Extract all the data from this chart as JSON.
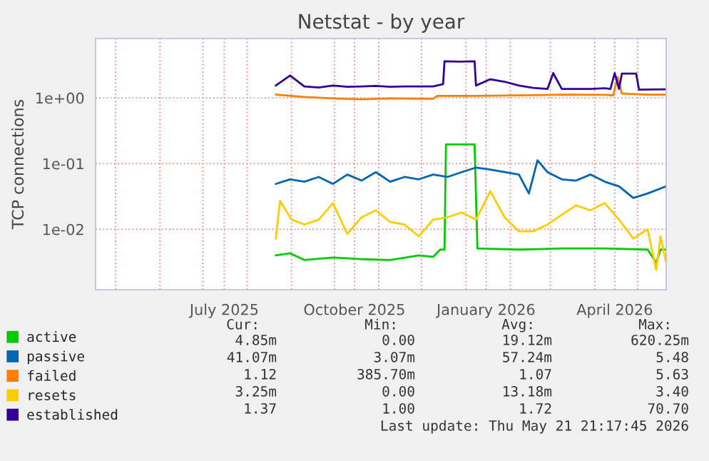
{
  "chart_data": {
    "type": "line",
    "title": "Netstat - by year",
    "ylabel": "TCP connections",
    "log": "y",
    "ylim": [
      0.0012,
      8
    ],
    "yticks": [
      {
        "value": 0.01,
        "label": "1e-02"
      },
      {
        "value": 0.1,
        "label": "1e-01"
      },
      {
        "value": 1,
        "label": "1e+00"
      }
    ],
    "xlim": [
      "2025-04-17",
      "2026-05-21"
    ],
    "xticks": [
      {
        "value": "2025-05-01",
        "label": null
      },
      {
        "value": "2025-06-01",
        "label": null
      },
      {
        "value": "2025-07-01",
        "label": null
      },
      {
        "value": "2025-07-16",
        "label": "July 2025"
      },
      {
        "value": "2025-08-01",
        "label": null
      },
      {
        "value": "2025-09-01",
        "label": null
      },
      {
        "value": "2025-10-01",
        "label": null
      },
      {
        "value": "2025-10-15",
        "label": "October 2025"
      },
      {
        "value": "2025-11-01",
        "label": null
      },
      {
        "value": "2025-12-01",
        "label": null
      },
      {
        "value": "2026-01-01",
        "label": null
      },
      {
        "value": "2026-01-15",
        "label": "January 2026"
      },
      {
        "value": "2026-02-01",
        "label": null
      },
      {
        "value": "2026-03-01",
        "label": null
      },
      {
        "value": "2026-04-01",
        "label": null
      },
      {
        "value": "2026-04-15",
        "label": "April 2026"
      },
      {
        "value": "2026-05-01",
        "label": null
      }
    ],
    "grid": true,
    "legend": "bottom left",
    "line_style": "solid",
    "marker": "none",
    "series": [
      {
        "name": "active",
        "color": "#00cc00",
        "x": [
          "2025-08-21",
          "2025-08-31",
          "2025-09-10",
          "2025-09-30",
          "2025-10-20",
          "2025-11-09",
          "2025-11-29",
          "2025-12-09",
          "2025-12-14",
          "2025-12-17",
          "2025-12-18",
          "2026-01-07",
          "2026-01-09",
          "2026-02-07",
          "2026-03-09",
          "2026-04-08",
          "2026-05-08",
          "2026-05-14",
          "2026-05-17",
          "2026-05-21"
        ],
        "values": [
          0.004,
          0.0043,
          0.0034,
          0.0037,
          0.0035,
          0.0034,
          0.004,
          0.0038,
          0.0049,
          0.0049,
          0.195,
          0.195,
          0.0051,
          0.0049,
          0.0051,
          0.0051,
          0.0049,
          0.0031,
          0.0049,
          0.0049
        ]
      },
      {
        "name": "passive",
        "color": "#0066b3",
        "x": [
          "2025-08-21",
          "2025-08-31",
          "2025-09-10",
          "2025-09-20",
          "2025-09-30",
          "2025-10-10",
          "2025-10-20",
          "2025-10-30",
          "2025-11-09",
          "2025-11-19",
          "2025-11-29",
          "2025-12-09",
          "2025-12-19",
          "2025-12-29",
          "2026-01-08",
          "2026-01-18",
          "2026-01-28",
          "2026-02-07",
          "2026-02-14",
          "2026-02-20",
          "2026-02-27",
          "2026-03-09",
          "2026-03-19",
          "2026-03-29",
          "2026-04-08",
          "2026-04-18",
          "2026-04-28",
          "2026-05-08",
          "2026-05-21"
        ],
        "values": [
          0.049,
          0.0575,
          0.053,
          0.0625,
          0.049,
          0.068,
          0.055,
          0.074,
          0.053,
          0.0625,
          0.0575,
          0.068,
          0.0625,
          0.074,
          0.087,
          0.081,
          0.074,
          0.068,
          0.035,
          0.112,
          0.074,
          0.0575,
          0.055,
          0.068,
          0.053,
          0.045,
          0.03,
          0.035,
          0.045
        ]
      },
      {
        "name": "failed",
        "color": "#ff8000",
        "x": [
          "2025-08-21",
          "2025-09-10",
          "2025-09-30",
          "2025-10-20",
          "2025-11-09",
          "2025-11-29",
          "2025-12-09",
          "2025-12-12",
          "2026-01-08",
          "2026-02-07",
          "2026-03-09",
          "2026-04-08",
          "2026-04-14",
          "2026-04-17",
          "2026-04-20",
          "2026-05-08",
          "2026-05-21"
        ],
        "values": [
          1.12,
          1.03,
          0.98,
          0.95,
          0.98,
          0.97,
          0.97,
          1.07,
          1.07,
          1.09,
          1.12,
          1.11,
          1.09,
          2.08,
          1.16,
          1.12,
          1.12
        ]
      },
      {
        "name": "resets",
        "color": "#ffcc00",
        "x": [
          "2025-08-21",
          "2025-08-24",
          "2025-09-01",
          "2025-09-10",
          "2025-09-20",
          "2025-09-30",
          "2025-10-10",
          "2025-10-20",
          "2025-10-30",
          "2025-11-09",
          "2025-11-19",
          "2025-11-29",
          "2025-12-09",
          "2025-12-19",
          "2025-12-29",
          "2026-01-08",
          "2026-01-18",
          "2026-01-28",
          "2026-02-07",
          "2026-02-17",
          "2026-02-27",
          "2026-03-09",
          "2026-03-19",
          "2026-03-29",
          "2026-04-08",
          "2026-04-18",
          "2026-04-28",
          "2026-05-08",
          "2026-05-14",
          "2026-05-17",
          "2026-05-21"
        ],
        "values": [
          0.0072,
          0.027,
          0.014,
          0.0118,
          0.014,
          0.025,
          0.0085,
          0.0152,
          0.0194,
          0.0129,
          0.0118,
          0.0078,
          0.014,
          0.0152,
          0.018,
          0.014,
          0.038,
          0.0152,
          0.0093,
          0.0093,
          0.0118,
          0.0166,
          0.023,
          0.0194,
          0.025,
          0.014,
          0.0072,
          0.01,
          0.0024,
          0.0078,
          0.0031
        ]
      },
      {
        "name": "established",
        "color": "#330099",
        "x": [
          "2025-08-21",
          "2025-08-31",
          "2025-09-10",
          "2025-09-20",
          "2025-09-30",
          "2025-10-10",
          "2025-10-20",
          "2025-10-30",
          "2025-11-09",
          "2025-11-19",
          "2025-11-29",
          "2025-12-09",
          "2025-12-16",
          "2025-12-17",
          "2025-12-28",
          "2026-01-07",
          "2026-01-08",
          "2026-01-18",
          "2026-01-28",
          "2026-02-07",
          "2026-02-17",
          "2026-02-27",
          "2026-03-03",
          "2026-03-09",
          "2026-03-19",
          "2026-03-29",
          "2026-04-08",
          "2026-04-12",
          "2026-04-15",
          "2026-04-18",
          "2026-04-20",
          "2026-04-30",
          "2026-05-02",
          "2026-05-21"
        ],
        "values": [
          1.54,
          2.19,
          1.49,
          1.44,
          1.54,
          1.47,
          1.49,
          1.52,
          1.47,
          1.49,
          1.49,
          1.49,
          1.62,
          3.6,
          3.55,
          3.6,
          1.54,
          1.92,
          1.76,
          1.54,
          1.42,
          1.37,
          2.38,
          1.37,
          1.37,
          1.37,
          1.4,
          1.37,
          2.38,
          1.37,
          2.34,
          2.34,
          1.33,
          1.35
        ]
      }
    ],
    "annotations": [
      "Cur:",
      "Min:",
      "Avg:",
      "Max:",
      "4.85m",
      "0.00",
      "19.12m",
      "620.25m",
      "41.07m",
      "3.07m",
      "57.24m",
      "5.48",
      "1.12",
      "385.70m",
      "1.07",
      "5.63",
      "3.25m",
      "0.00",
      "13.18m",
      "3.40",
      "1.37",
      "1.00",
      "1.72",
      "70.70",
      "Last update: Thu May 21 21:17:45 2026"
    ]
  }
}
